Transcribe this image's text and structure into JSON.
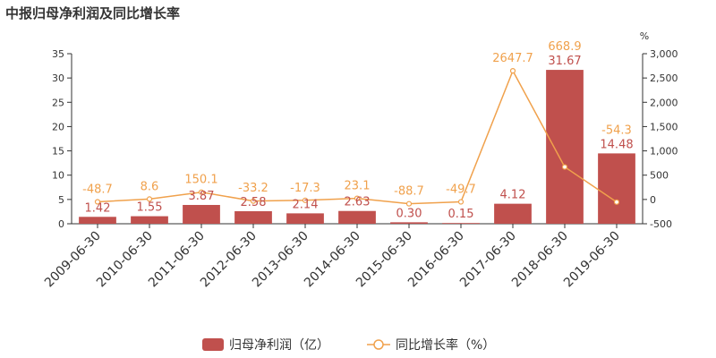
{
  "title": "中报归母净利润及同比增长率",
  "chart_data": {
    "type": "bar",
    "categories": [
      "2009-06-30",
      "2010-06-30",
      "2011-06-30",
      "2012-06-30",
      "2013-06-30",
      "2014-06-30",
      "2015-06-30",
      "2016-06-30",
      "2017-06-30",
      "2018-06-30",
      "2019-06-30"
    ],
    "series": [
      {
        "name": "归母净利润（亿）",
        "type": "bar",
        "axis": "left",
        "color": "#c0504d",
        "values": [
          1.42,
          1.55,
          3.87,
          2.58,
          2.14,
          2.63,
          0.3,
          0.15,
          4.12,
          31.67,
          14.48
        ],
        "labels": [
          "1.42",
          "1.55",
          "3.87",
          "2.58",
          "2.14",
          "2.63",
          "0.30",
          "0.15",
          "4.12",
          "31.67",
          "14.48"
        ]
      },
      {
        "name": "同比增长率（%）",
        "type": "line",
        "axis": "right",
        "color": "#f0a14c",
        "values": [
          -48.7,
          8.6,
          150.1,
          -33.2,
          -17.3,
          23.1,
          -88.7,
          -49.7,
          2647.7,
          668.9,
          -54.3
        ],
        "labels": [
          "-48.7",
          "8.6",
          "150.1",
          "-33.2",
          "-17.3",
          "23.1",
          "-88.7",
          "-49.7",
          "2647.7",
          "668.9",
          "-54.3"
        ]
      }
    ],
    "y_left": {
      "ylim": [
        0,
        35
      ],
      "ticks": [
        "0",
        "5",
        "10",
        "15",
        "20",
        "25",
        "30",
        "35"
      ]
    },
    "y_right": {
      "unit": "%",
      "ylim": [
        -500,
        3000
      ],
      "ticks": [
        "-500",
        "0",
        "500",
        "1,000",
        "1,500",
        "2,000",
        "2,500",
        "3,000"
      ]
    },
    "grid": false,
    "legend_position": "bottom"
  }
}
